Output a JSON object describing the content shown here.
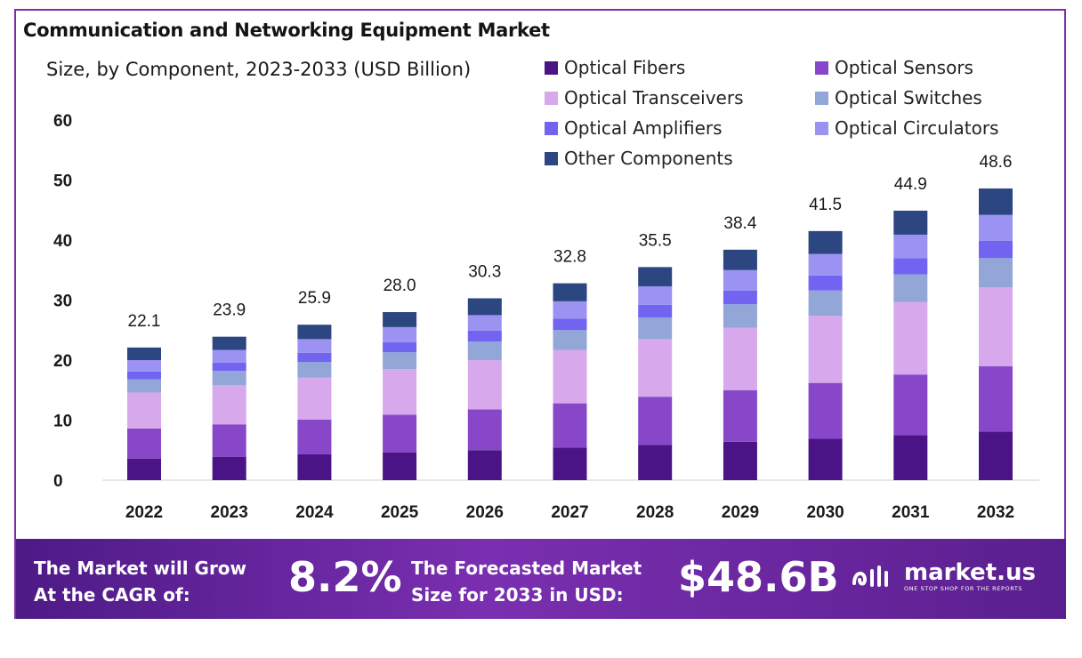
{
  "header": {
    "title": "Communication and Networking Equipment Market",
    "subtitle": "Size, by Component, 2023-2033 (USD Billion)"
  },
  "chart_data": {
    "type": "bar",
    "stacked": true,
    "categories": [
      "2022",
      "2023",
      "2024",
      "2025",
      "2026",
      "2027",
      "2028",
      "2029",
      "2030",
      "2031",
      "2032"
    ],
    "totals": [
      22.1,
      23.9,
      25.9,
      28.0,
      30.3,
      32.8,
      35.5,
      38.4,
      41.5,
      44.9,
      48.6
    ],
    "total_labels": [
      "22.1",
      "23.9",
      "25.9",
      "28.0",
      "30.3",
      "32.8",
      "35.5",
      "38.4",
      "41.5",
      "44.9",
      "48.6"
    ],
    "series": [
      {
        "name": "Optical Fibers",
        "color": "#4a1486",
        "values": [
          3.6,
          3.9,
          4.3,
          4.6,
          5.0,
          5.4,
          5.9,
          6.4,
          6.9,
          7.5,
          8.1
        ]
      },
      {
        "name": "Optical Sensors",
        "color": "#8747c8",
        "values": [
          5.0,
          5.4,
          5.8,
          6.3,
          6.8,
          7.4,
          8.0,
          8.6,
          9.3,
          10.1,
          10.9
        ]
      },
      {
        "name": "Optical Transceivers",
        "color": "#d7a9ec",
        "values": [
          6.0,
          6.5,
          7.0,
          7.6,
          8.2,
          8.9,
          9.6,
          10.4,
          11.2,
          12.1,
          13.1
        ]
      },
      {
        "name": "Optical Switches",
        "color": "#92a6d8",
        "values": [
          2.2,
          2.4,
          2.6,
          2.8,
          3.1,
          3.3,
          3.6,
          3.9,
          4.2,
          4.6,
          4.9
        ]
      },
      {
        "name": "Optical Amplifiers",
        "color": "#7064f0",
        "values": [
          1.3,
          1.4,
          1.5,
          1.7,
          1.8,
          1.9,
          2.1,
          2.3,
          2.5,
          2.7,
          2.9
        ]
      },
      {
        "name": "Optical Circulators",
        "color": "#9b92f2",
        "values": [
          1.9,
          2.1,
          2.3,
          2.5,
          2.6,
          2.9,
          3.1,
          3.4,
          3.6,
          3.9,
          4.3
        ]
      },
      {
        "name": "Other Components",
        "color": "#2b4680",
        "values": [
          2.1,
          2.2,
          2.4,
          2.5,
          2.8,
          3.0,
          3.2,
          3.4,
          3.8,
          4.0,
          4.4
        ]
      }
    ],
    "yticks": [
      "0",
      "10",
      "20",
      "30",
      "40",
      "50",
      "60"
    ],
    "ylim": [
      0,
      60
    ],
    "xlabel": "",
    "ylabel": ""
  },
  "footer": {
    "cagr_text_line1": "The Market will Grow",
    "cagr_text_line2": "At the CAGR of:",
    "cagr_value": "8.2%",
    "forecast_text_line1": "The Forecasted Market",
    "forecast_text_line2": "Size for 2033 in USD:",
    "forecast_value": "$48.6B",
    "brand_name": "market.us",
    "brand_tagline": "ONE STOP SHOP FOR THE REPORTS"
  }
}
